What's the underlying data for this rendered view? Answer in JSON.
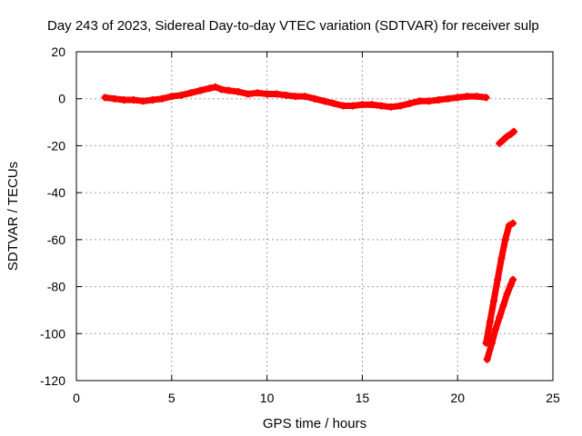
{
  "chart_data": {
    "type": "scatter",
    "title": "Day 243 of 2023, Sidereal Day-to-day VTEC variation (SDTVAR) for receiver sulp",
    "xlabel": "GPS time / hours",
    "ylabel": "SDTVAR / TECUs",
    "xlim": [
      0,
      25
    ],
    "ylim": [
      -120,
      20
    ],
    "xticks": [
      "0",
      "5",
      "10",
      "15",
      "20",
      "25"
    ],
    "yticks": [
      "-120",
      "-100",
      "-80",
      "-60",
      "-40",
      "-20",
      "0",
      "20"
    ],
    "grid": true,
    "marker_color": "#ff0000",
    "series": [
      {
        "segment": "main",
        "x": [
          1.5,
          2.0,
          2.5,
          3.0,
          3.5,
          4.0,
          4.5,
          5.0,
          5.5,
          6.0,
          6.5,
          7.0,
          7.3,
          7.6,
          8.0,
          8.5,
          9.0,
          9.5,
          10.0,
          10.5,
          11.0,
          11.5,
          12.0,
          12.5,
          13.0,
          13.5,
          14.0,
          14.5,
          15.0,
          15.5,
          16.0,
          16.5,
          17.0,
          17.5,
          18.0,
          18.5,
          19.0,
          19.5,
          20.0,
          20.5,
          21.0,
          21.5
        ],
        "y": [
          0.5,
          0,
          -0.5,
          -0.5,
          -1,
          -0.5,
          0,
          1,
          1.5,
          2.5,
          3.5,
          4.5,
          5,
          4,
          3.5,
          3,
          2,
          2.5,
          2,
          2,
          1.5,
          1,
          1,
          0,
          -1,
          -2,
          -3,
          -3,
          -2.5,
          -2.5,
          -3,
          -3.5,
          -3,
          -2,
          -1,
          -1,
          -0.5,
          0,
          0.5,
          1,
          1,
          0.5
        ]
      },
      {
        "segment": "upper-tail",
        "x": [
          22.2,
          22.4,
          22.6,
          22.8,
          22.95
        ],
        "y": [
          -19,
          -17.5,
          -16,
          -15,
          -14
        ]
      },
      {
        "segment": "steep-track-a",
        "x": [
          21.5,
          21.7,
          21.9,
          22.1,
          22.3,
          22.5,
          22.7,
          22.9
        ],
        "y": [
          -104,
          -95,
          -86,
          -77,
          -68,
          -60,
          -54,
          -53
        ]
      },
      {
        "segment": "steep-track-b",
        "x": [
          21.55,
          21.8,
          22.0,
          22.2,
          22.4,
          22.6,
          22.8,
          22.9
        ],
        "y": [
          -111,
          -104,
          -98,
          -93,
          -88,
          -83,
          -79,
          -77
        ]
      }
    ]
  }
}
